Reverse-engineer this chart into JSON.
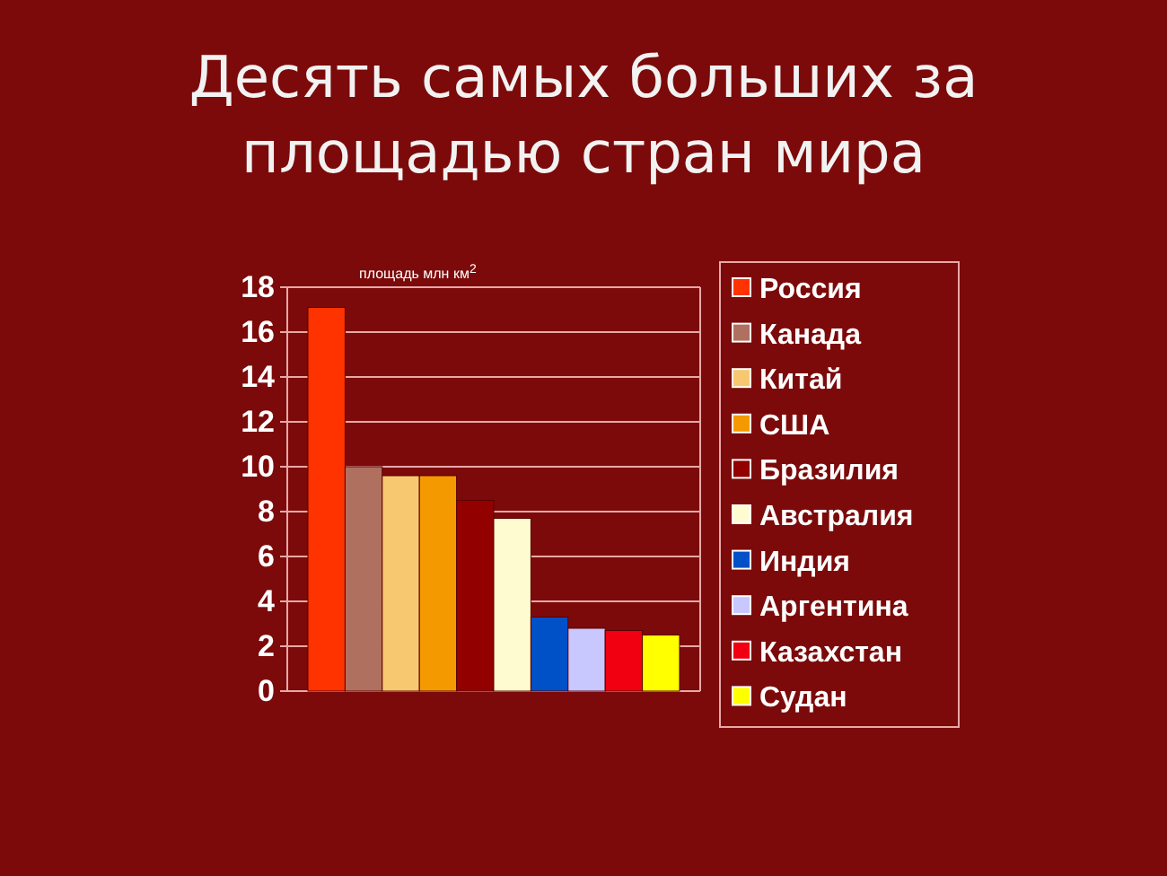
{
  "chart_data": {
    "type": "bar",
    "title": "Десять самых больших за площадью стран мира",
    "ylabel": "площадь млн км$^{2}$",
    "categories": [
      null
    ],
    "series": [
      {
        "name": "Россия",
        "color": "#ff3300",
        "values": [
          17.1
        ]
      },
      {
        "name": "Канада",
        "color": "#b07060",
        "values": [
          10.0
        ]
      },
      {
        "name": "Китай",
        "color": "#f8c870",
        "values": [
          9.6
        ]
      },
      {
        "name": "США",
        "color": "#f49a00",
        "values": [
          9.6
        ]
      },
      {
        "name": "Бразилия",
        "color": "#920000",
        "values": [
          8.5
        ]
      },
      {
        "name": "Австралия",
        "color": "#fffbd0",
        "values": [
          7.7
        ]
      },
      {
        "name": "Индия",
        "color": "#0050c8",
        "values": [
          3.3
        ]
      },
      {
        "name": "Аргентина",
        "color": "#c8c8ff",
        "values": [
          2.8
        ]
      },
      {
        "name": "Казахстан",
        "color": "#f00010",
        "values": [
          2.7
        ]
      },
      {
        "name": "Судан",
        "color": "#ffff00",
        "values": [
          2.5
        ]
      }
    ],
    "ylim": [
      0,
      18
    ],
    "yticks": [
      0,
      2,
      4,
      6,
      8,
      10,
      12,
      14,
      16,
      18
    ],
    "grid": "y",
    "legend": "right",
    "tick_labels": "y"
  }
}
